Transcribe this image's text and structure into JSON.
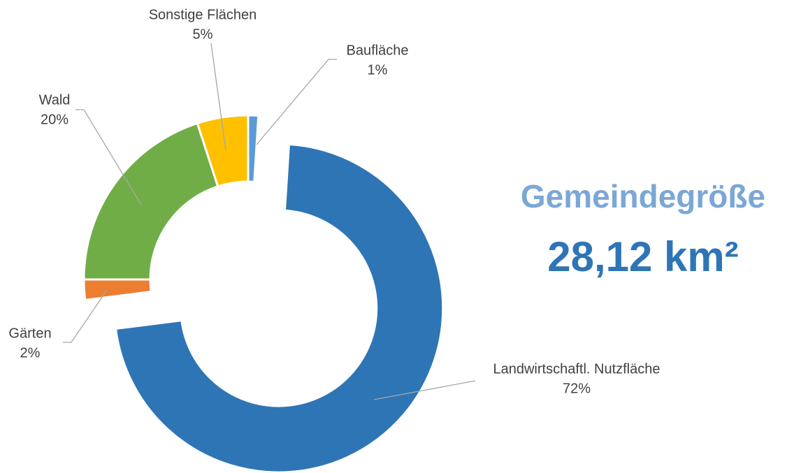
{
  "chart_data": {
    "type": "donut",
    "title": "Gemeindegröße",
    "subtitle": "28,12 km²",
    "categories": [
      "Baufläche",
      "Landwirtschaftl. Nutzfläche",
      "Gärten",
      "Wald",
      "Sonstige Flächen"
    ],
    "values": [
      1,
      72,
      2,
      20,
      5
    ],
    "value_labels": [
      "1%",
      "72%",
      "2%",
      "20%",
      "5%"
    ],
    "colors": [
      "#5b9bd5",
      "#2e75b6",
      "#ed7d31",
      "#70ad47",
      "#ffc000"
    ]
  }
}
